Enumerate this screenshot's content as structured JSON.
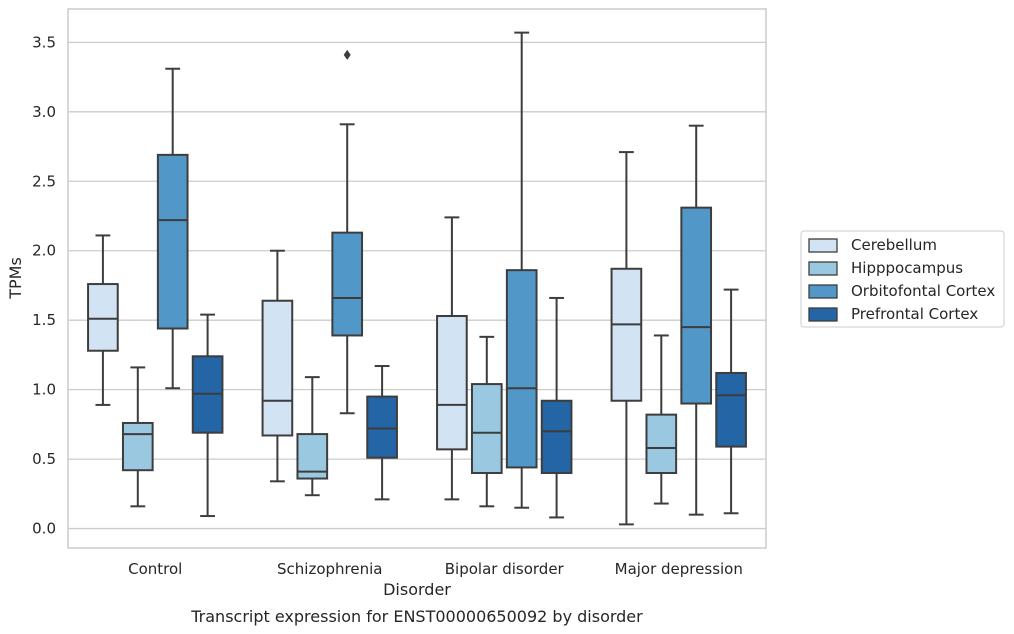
{
  "chart_data": {
    "type": "boxplot",
    "caption": "Transcript expression for ENST00000650092 by disorder",
    "xlabel": "Disorder",
    "ylabel": "TPMs",
    "ylim": [
      -0.14,
      3.74
    ],
    "yticks": [
      "0.0",
      "0.5",
      "1.0",
      "1.5",
      "2.0",
      "2.5",
      "3.0",
      "3.5"
    ],
    "grid": "horizontal",
    "legend_position": "right",
    "categories": [
      "Control",
      "Schizophrenia",
      "Bipolar disorder",
      "Major depression"
    ],
    "series": [
      {
        "name": "Cerebellum",
        "color": "#d2e3f3",
        "boxes": [
          {
            "whisker_low": 0.89,
            "q1": 1.28,
            "median": 1.51,
            "q3": 1.76,
            "whisker_high": 2.11,
            "outliers": []
          },
          {
            "whisker_low": 0.34,
            "q1": 0.67,
            "median": 0.92,
            "q3": 1.64,
            "whisker_high": 2.0,
            "outliers": []
          },
          {
            "whisker_low": 0.21,
            "q1": 0.57,
            "median": 0.89,
            "q3": 1.53,
            "whisker_high": 2.24,
            "outliers": []
          },
          {
            "whisker_low": 0.03,
            "q1": 0.92,
            "median": 1.47,
            "q3": 1.87,
            "whisker_high": 2.71,
            "outliers": []
          }
        ]
      },
      {
        "name": "Hipppocampus",
        "color": "#9ac8e0",
        "boxes": [
          {
            "whisker_low": 0.16,
            "q1": 0.42,
            "median": 0.68,
            "q3": 0.76,
            "whisker_high": 1.16,
            "outliers": []
          },
          {
            "whisker_low": 0.24,
            "q1": 0.36,
            "median": 0.41,
            "q3": 0.68,
            "whisker_high": 1.09,
            "outliers": []
          },
          {
            "whisker_low": 0.16,
            "q1": 0.4,
            "median": 0.69,
            "q3": 1.04,
            "whisker_high": 1.38,
            "outliers": []
          },
          {
            "whisker_low": 0.18,
            "q1": 0.4,
            "median": 0.58,
            "q3": 0.82,
            "whisker_high": 1.39,
            "outliers": []
          }
        ]
      },
      {
        "name": "Orbitofontal Cortex",
        "color": "#5198c8",
        "boxes": [
          {
            "whisker_low": 1.01,
            "q1": 1.44,
            "median": 2.22,
            "q3": 2.69,
            "whisker_high": 3.31,
            "outliers": []
          },
          {
            "whisker_low": 0.83,
            "q1": 1.39,
            "median": 1.66,
            "q3": 2.13,
            "whisker_high": 2.91,
            "outliers": [
              3.41
            ]
          },
          {
            "whisker_low": 0.15,
            "q1": 0.44,
            "median": 1.01,
            "q3": 1.86,
            "whisker_high": 3.57,
            "outliers": []
          },
          {
            "whisker_low": 0.1,
            "q1": 0.9,
            "median": 1.45,
            "q3": 2.31,
            "whisker_high": 2.9,
            "outliers": []
          }
        ]
      },
      {
        "name": "Prefrontal Cortex",
        "color": "#2465a6",
        "boxes": [
          {
            "whisker_low": 0.09,
            "q1": 0.69,
            "median": 0.97,
            "q3": 1.24,
            "whisker_high": 1.54,
            "outliers": []
          },
          {
            "whisker_low": 0.21,
            "q1": 0.51,
            "median": 0.72,
            "q3": 0.95,
            "whisker_high": 1.17,
            "outliers": []
          },
          {
            "whisker_low": 0.08,
            "q1": 0.4,
            "median": 0.7,
            "q3": 0.92,
            "whisker_high": 1.66,
            "outliers": []
          },
          {
            "whisker_low": 0.11,
            "q1": 0.59,
            "median": 0.96,
            "q3": 1.12,
            "whisker_high": 1.72,
            "outliers": []
          }
        ]
      }
    ]
  }
}
